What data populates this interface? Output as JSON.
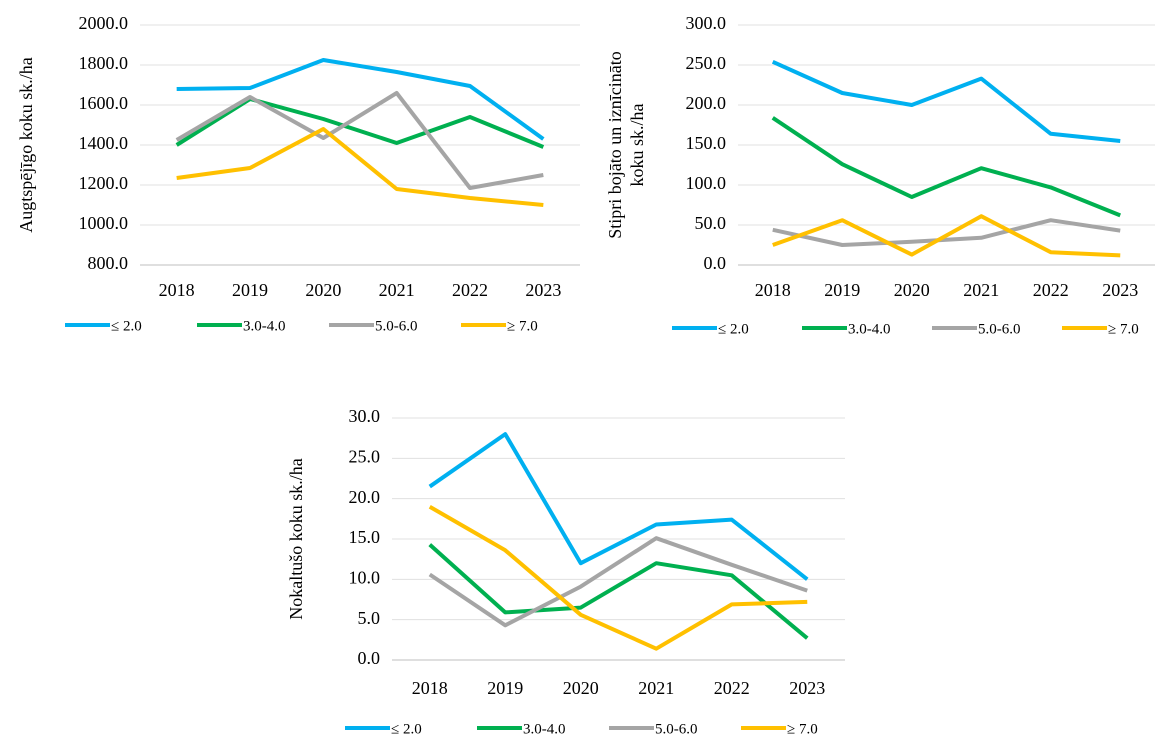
{
  "chart_data": [
    {
      "type": "line",
      "y_label": [
        "Augtspējīgo koku sk./ha"
      ],
      "categories": [
        "2018",
        "2019",
        "2020",
        "2021",
        "2022",
        "2023"
      ],
      "series": [
        {
          "name": "≤ 2.0",
          "color": "#00b0f0",
          "values": [
            1680,
            1685,
            1825,
            1765,
            1695,
            1430
          ]
        },
        {
          "name": "3.0-4.0",
          "color": "#00b050",
          "values": [
            1400,
            1630,
            1530,
            1410,
            1540,
            1390
          ]
        },
        {
          "name": "5.0-6.0",
          "color": "#a5a5a5",
          "values": [
            1425,
            1640,
            1435,
            1660,
            1185,
            1250
          ]
        },
        {
          "name": "≥ 7.0",
          "color": "#ffc000",
          "values": [
            1235,
            1285,
            1480,
            1180,
            1135,
            1100
          ]
        }
      ],
      "ylim": [
        800,
        2000
      ],
      "yticks": [
        {
          "value": 800,
          "label": "800.0"
        },
        {
          "value": 1000,
          "label": "1000.0"
        },
        {
          "value": 1200,
          "label": "1200.0"
        },
        {
          "value": 1400,
          "label": "1400.0"
        },
        {
          "value": 1600,
          "label": "1600.0"
        },
        {
          "value": 1800,
          "label": "1800.0"
        },
        {
          "value": 2000,
          "label": "2000.0"
        }
      ],
      "grid": true,
      "legend": "bottom"
    },
    {
      "type": "line",
      "y_label": [
        "Stipri bojāto un iznīcināto",
        "koku sk./ha"
      ],
      "categories": [
        "2018",
        "2019",
        "2020",
        "2021",
        "2022",
        "2023"
      ],
      "series": [
        {
          "name": "≤ 2.0",
          "color": "#00b0f0",
          "values": [
            254,
            215,
            200,
            233,
            164,
            155
          ]
        },
        {
          "name": "3.0-4.0",
          "color": "#00b050",
          "values": [
            184,
            126,
            85,
            121,
            97,
            62
          ]
        },
        {
          "name": "5.0-6.0",
          "color": "#a5a5a5",
          "values": [
            44,
            25,
            29,
            34,
            56,
            43
          ]
        },
        {
          "name": "≥ 7.0",
          "color": "#ffc000",
          "values": [
            25,
            56,
            13,
            61,
            16,
            12
          ]
        }
      ],
      "ylim": [
        0,
        300
      ],
      "yticks": [
        {
          "value": 0,
          "label": "0.0"
        },
        {
          "value": 50,
          "label": "50.0"
        },
        {
          "value": 100,
          "label": "100.0"
        },
        {
          "value": 150,
          "label": "150.0"
        },
        {
          "value": 200,
          "label": "200.0"
        },
        {
          "value": 250,
          "label": "250.0"
        },
        {
          "value": 300,
          "label": "300.0"
        }
      ],
      "grid": true,
      "legend": "bottom"
    },
    {
      "type": "line",
      "y_label": [
        "Nokaltušo koku sk./ha"
      ],
      "categories": [
        "2018",
        "2019",
        "2020",
        "2021",
        "2022",
        "2023"
      ],
      "series": [
        {
          "name": "≤ 2.0",
          "color": "#00b0f0",
          "values": [
            21.5,
            28,
            12,
            16.8,
            17.4,
            10
          ]
        },
        {
          "name": "3.0-4.0",
          "color": "#00b050",
          "values": [
            14.3,
            5.9,
            6.5,
            12,
            10.5,
            2.7
          ]
        },
        {
          "name": "5.0-6.0",
          "color": "#a5a5a5",
          "values": [
            10.6,
            4.3,
            9.1,
            15.1,
            11.8,
            8.6
          ]
        },
        {
          "name": "≥ 7.0",
          "color": "#ffc000",
          "values": [
            19,
            13.6,
            5.6,
            1.4,
            6.9,
            7.2
          ]
        }
      ],
      "ylim": [
        0,
        30
      ],
      "yticks": [
        {
          "value": 0,
          "label": "0.0"
        },
        {
          "value": 5,
          "label": "5.0"
        },
        {
          "value": 10,
          "label": "10.0"
        },
        {
          "value": 15,
          "label": "15.0"
        },
        {
          "value": 20,
          "label": "20.0"
        },
        {
          "value": 25,
          "label": "25.0"
        },
        {
          "value": 30,
          "label": "30.0"
        }
      ],
      "grid": true,
      "legend": "bottom"
    }
  ]
}
